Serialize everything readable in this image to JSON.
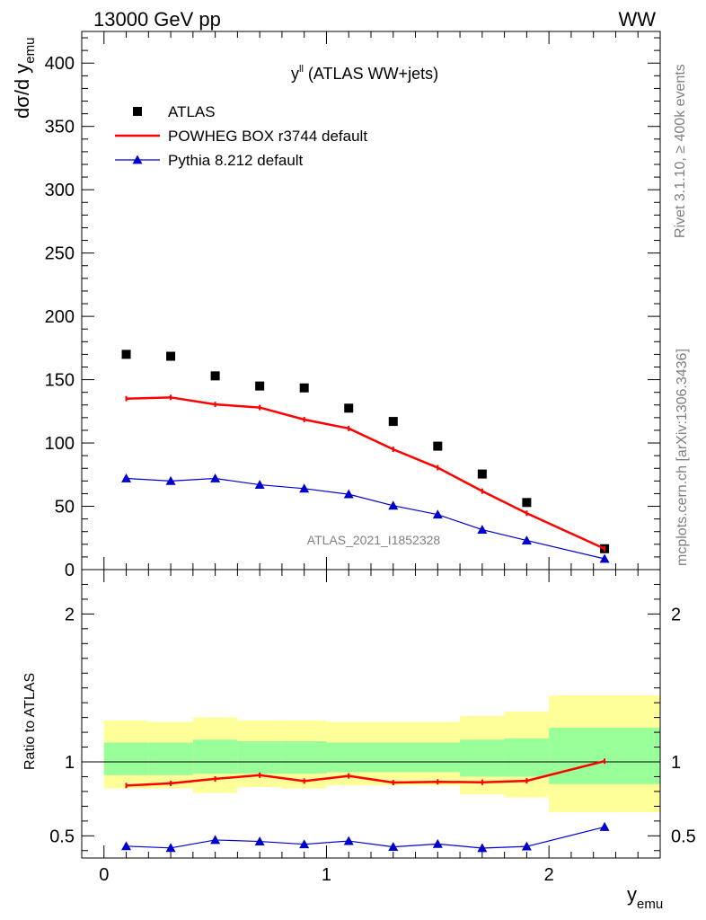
{
  "header": {
    "process": "13000 GeV pp",
    "channel": "WW",
    "rivet": "Rivet 3.1.10, ≥ 400k events",
    "mcplots": "mcplots.cern.ch [arXiv:1306.3436]",
    "analysis_id": "ATLAS_2021_I1852328"
  },
  "chart_data": [
    {
      "type": "scatter",
      "title_main": "y",
      "title_sup": "ll",
      "title_rest": " (ATLAS WW+jets)",
      "ylabel_main": "dσ/d y",
      "ylabel_sub": "emu",
      "xlabel_main": "y",
      "xlabel_sub": "emu",
      "xlim": [
        -0.1,
        2.5
      ],
      "ylim": [
        0,
        425
      ],
      "y_ticks": [
        0,
        50,
        100,
        150,
        200,
        250,
        300,
        350,
        400
      ],
      "x_ticks": [
        0,
        1,
        2
      ],
      "grid": false,
      "legend_position": "top-left",
      "series": [
        {
          "name": "ATLAS",
          "style": "marker-square",
          "color": "#000000",
          "x": [
            0.1,
            0.3,
            0.5,
            0.7,
            0.9,
            1.1,
            1.3,
            1.5,
            1.7,
            1.9,
            2.25
          ],
          "y": [
            170,
            168.5,
            153,
            145,
            143.5,
            127.5,
            117,
            97.5,
            75.5,
            53,
            16.5
          ]
        },
        {
          "name": "POWHEG BOX r3744 default",
          "style": "line",
          "color": "#ff0000",
          "x": [
            0.1,
            0.3,
            0.5,
            0.7,
            0.9,
            1.1,
            1.3,
            1.5,
            1.7,
            1.9,
            2.25
          ],
          "y": [
            135,
            136,
            130.5,
            128,
            118.5,
            111.5,
            95,
            80.5,
            62,
            44.5,
            16.5
          ]
        },
        {
          "name": "Pythia 8.212 default",
          "style": "line-triangle",
          "color": "#0000cc",
          "x": [
            0.1,
            0.3,
            0.5,
            0.7,
            0.9,
            1.1,
            1.3,
            1.5,
            1.7,
            1.9,
            2.25
          ],
          "y": [
            72,
            70,
            72,
            67,
            64,
            59.5,
            50.5,
            43.5,
            31.5,
            23,
            8.5
          ]
        }
      ]
    },
    {
      "type": "scatter",
      "ylabel": "Ratio to ATLAS",
      "ylim": [
        0.35,
        2.3
      ],
      "y_ticks": [
        0.5,
        1,
        2
      ],
      "reference_line": 1,
      "bins": [
        [
          0.0,
          0.2
        ],
        [
          0.2,
          0.4
        ],
        [
          0.4,
          0.6
        ],
        [
          0.6,
          0.8
        ],
        [
          0.8,
          1.0
        ],
        [
          1.0,
          1.2
        ],
        [
          1.2,
          1.4
        ],
        [
          1.4,
          1.6
        ],
        [
          1.6,
          1.8
        ],
        [
          1.8,
          2.0
        ],
        [
          2.0,
          2.5
        ]
      ],
      "band_inner": {
        "color": "#99ff99",
        "low": [
          0.91,
          0.91,
          0.92,
          0.92,
          0.92,
          0.93,
          0.93,
          0.93,
          0.9,
          0.9,
          0.85
        ],
        "high": [
          1.13,
          1.13,
          1.15,
          1.14,
          1.14,
          1.13,
          1.13,
          1.13,
          1.15,
          1.16,
          1.23
        ]
      },
      "band_outer": {
        "color": "#ffff99",
        "low": [
          0.82,
          0.82,
          0.79,
          0.83,
          0.82,
          0.84,
          0.84,
          0.84,
          0.78,
          0.76,
          0.66
        ],
        "high": [
          1.28,
          1.27,
          1.3,
          1.28,
          1.28,
          1.27,
          1.27,
          1.27,
          1.31,
          1.34,
          1.45
        ]
      },
      "series": [
        {
          "name": "POWHEG BOX r3744 default",
          "color": "#ff0000",
          "x": [
            0.1,
            0.3,
            0.5,
            0.7,
            0.9,
            1.1,
            1.3,
            1.5,
            1.7,
            1.9,
            2.25
          ],
          "y": [
            0.84,
            0.855,
            0.885,
            0.91,
            0.87,
            0.905,
            0.86,
            0.865,
            0.862,
            0.872,
            1.005
          ]
        },
        {
          "name": "Pythia 8.212 default",
          "color": "#0000cc",
          "x": [
            0.1,
            0.3,
            0.5,
            0.7,
            0.9,
            1.1,
            1.3,
            1.5,
            1.7,
            1.9,
            2.25
          ],
          "y": [
            0.43,
            0.418,
            0.472,
            0.462,
            0.443,
            0.465,
            0.425,
            0.445,
            0.417,
            0.428,
            0.56
          ]
        }
      ]
    }
  ]
}
